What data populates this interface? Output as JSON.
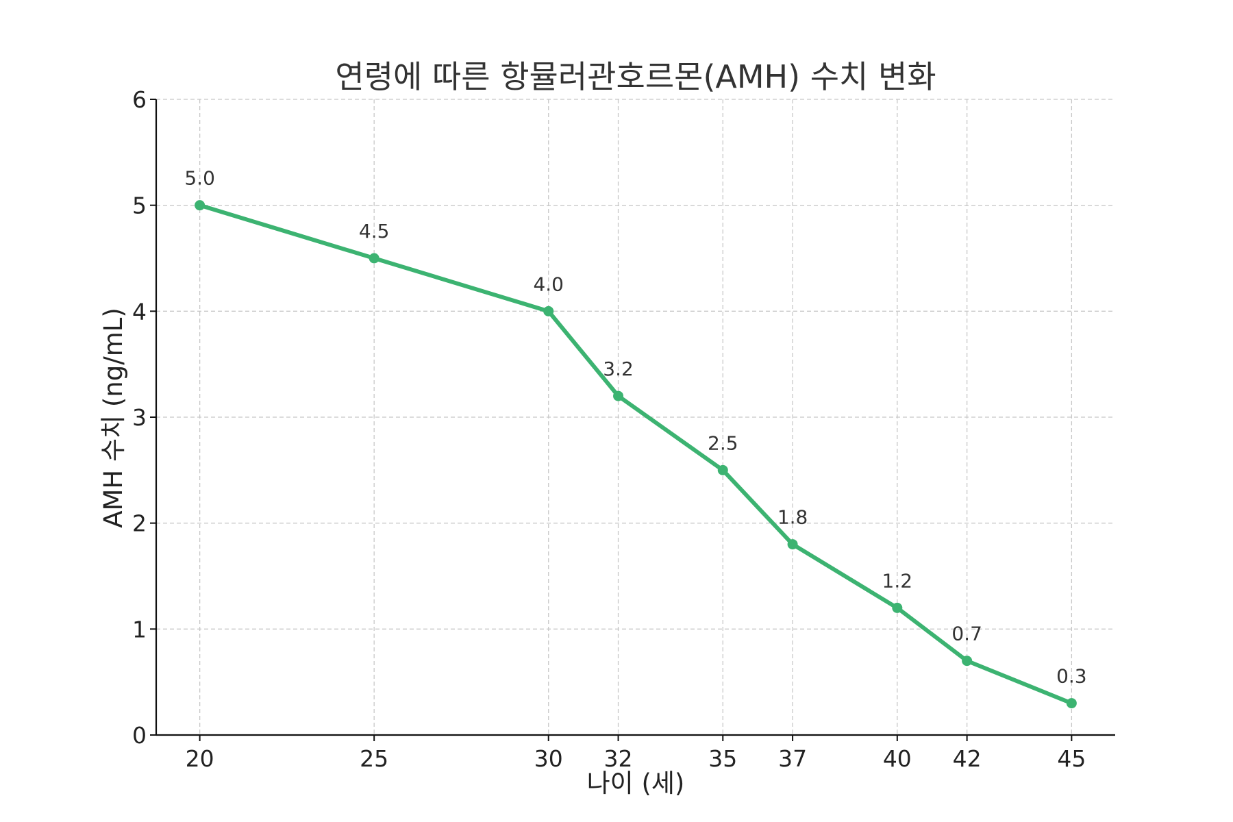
{
  "chart_data": {
    "type": "line",
    "title": "연령에 따른 항뮬러관호르몬(AMH) 수치 변화",
    "xlabel": "나이 (세)",
    "ylabel": "AMH 수치 (ng/mL)",
    "x": [
      20,
      25,
      30,
      32,
      35,
      37,
      40,
      42,
      45
    ],
    "x_tick_labels": [
      "20",
      "25",
      "30",
      "32",
      "35",
      "37",
      "40",
      "42",
      "45"
    ],
    "y_ticks": [
      0,
      1,
      2,
      3,
      4,
      5,
      6
    ],
    "y_tick_labels": [
      "0",
      "1",
      "2",
      "3",
      "4",
      "5",
      "6"
    ],
    "xlim": [
      18.75,
      46.25
    ],
    "ylim": [
      0,
      6
    ],
    "grid": true,
    "legend": "none",
    "series": [
      {
        "values": [
          5.0,
          4.5,
          4.0,
          3.2,
          2.5,
          1.8,
          1.2,
          0.7,
          0.3
        ],
        "value_labels": [
          "5.0",
          "4.5",
          "4.0",
          "3.2",
          "2.5",
          "1.8",
          "1.2",
          "0.7",
          "0.3"
        ],
        "color": "#3cb371"
      }
    ]
  }
}
